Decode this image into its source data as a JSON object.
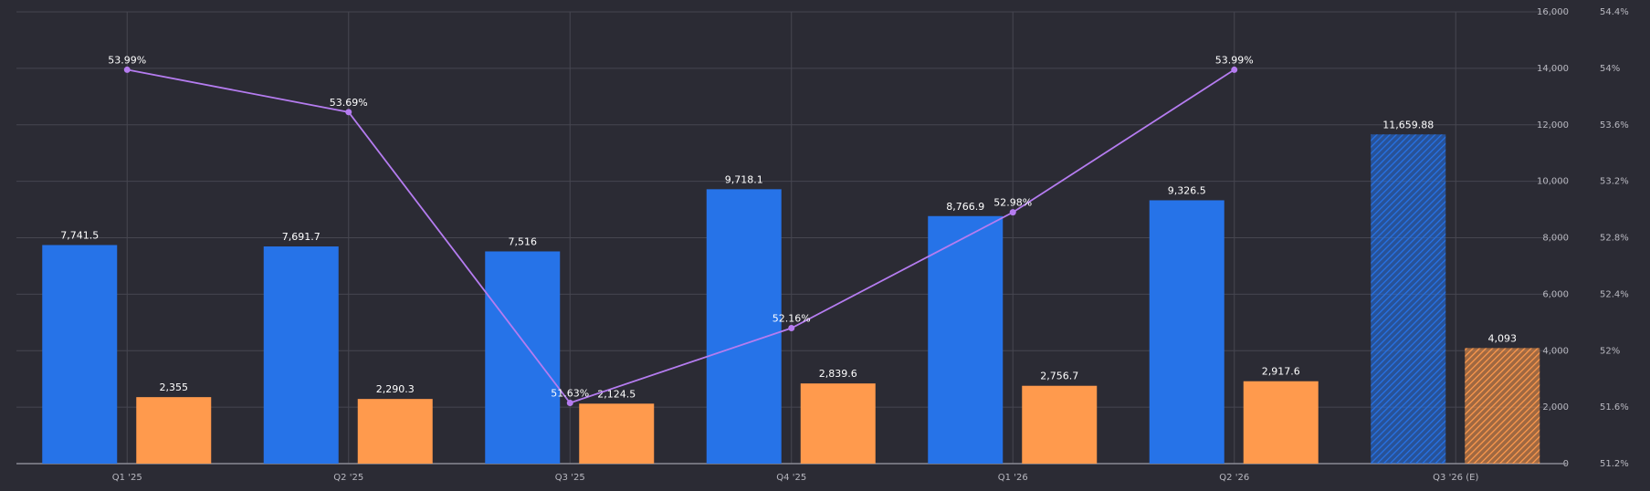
{
  "chart_data": {
    "type": "bar_line",
    "categories": [
      "Q1 '25",
      "Q2 '25",
      "Q3 '25",
      "Q4 '25",
      "Q1 '26",
      "Q2 '26",
      "Q3 '26 (E)"
    ],
    "series": [
      {
        "color": "#2673e8",
        "type": "bar",
        "values": [
          7741.5,
          7691.7,
          7516,
          9718.1,
          8766.9,
          9326.5,
          11659.88
        ],
        "value_labels": [
          "7,741.5",
          "7,691.7",
          "7,516",
          "9,718.1",
          "8,766.9",
          "9,326.5",
          "11,659.88"
        ]
      },
      {
        "color": "#ff9a4d",
        "type": "bar",
        "values": [
          2355,
          2290.3,
          2124.5,
          2839.6,
          2756.7,
          2917.6,
          4093
        ],
        "value_labels": [
          "2,355",
          "2,290.3",
          "2,124.5",
          "2,839.6",
          "2,756.7",
          "2,917.6",
          "4,093"
        ]
      },
      {
        "color": "#b57cf0",
        "type": "line",
        "axis": "y2",
        "values": [
          53.99,
          53.69,
          51.63,
          52.16,
          52.98,
          53.99,
          null
        ],
        "value_labels": [
          "53.99%",
          "53.69%",
          "51.63%",
          "52.16%",
          "52.98%",
          "53.99%",
          null
        ]
      }
    ],
    "hatched_categories": [
      6
    ],
    "ylim": [
      0,
      16000
    ],
    "yticks": [
      0,
      {
        "value": 2000,
        "label": "2,000"
      },
      {
        "value": 4000,
        "label": "4,000"
      },
      {
        "value": 6000,
        "label": "6,000"
      },
      {
        "value": 8000,
        "label": "8,000"
      },
      {
        "value": 10000,
        "label": "10,000"
      },
      {
        "value": 12000,
        "label": "12,000"
      },
      {
        "value": 14000,
        "label": "14,000"
      },
      {
        "value": 16000,
        "label": "16,000"
      }
    ],
    "y2lim": [
      51.2,
      54.4
    ],
    "y2ticks": [
      {
        "value": 51.2,
        "label": "51.2%"
      },
      {
        "value": 51.6,
        "label": "51.6%"
      },
      {
        "value": 52,
        "label": "52%"
      },
      {
        "value": 52.4,
        "label": "52.4%"
      },
      {
        "value": 52.8,
        "label": "52.8%"
      },
      {
        "value": 53.2,
        "label": "53.2%"
      },
      {
        "value": 53.6,
        "label": "53.6%"
      },
      {
        "value": 54,
        "label": "54%"
      },
      {
        "value": 54.4,
        "label": "54.4%"
      }
    ],
    "grid": true
  }
}
